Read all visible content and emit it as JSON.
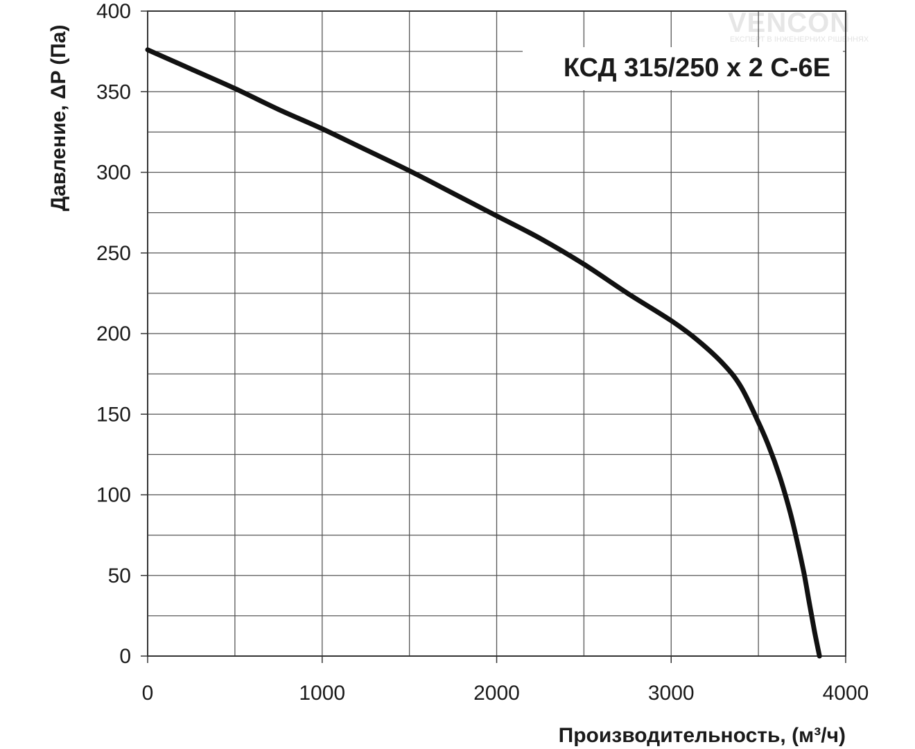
{
  "chart_data": {
    "type": "line",
    "title": "КСД 315/250 x 2 С-6Е",
    "xlabel": "Производительность, (м³/ч)",
    "ylabel": "Давление, ΔP (Па)",
    "xlim": [
      0,
      4000
    ],
    "ylim": [
      0,
      400
    ],
    "x_ticks": [
      "0",
      "1000",
      "2000",
      "3000",
      "4000"
    ],
    "y_ticks": [
      "0",
      "50",
      "100",
      "150",
      "200",
      "250",
      "300",
      "350",
      "400"
    ],
    "grid": true,
    "series": [
      {
        "x": [
          0,
          250,
          500,
          750,
          1000,
          1250,
          1500,
          1750,
          2000,
          2250,
          2500,
          2750,
          3000,
          3150,
          3300,
          3400,
          3500,
          3560,
          3620,
          3680,
          3720,
          3760,
          3790,
          3820,
          3850
        ],
        "y": [
          376,
          364,
          352,
          339,
          327,
          314,
          301,
          287,
          273,
          259,
          243,
          225,
          208,
          196,
          181,
          167,
          145,
          130,
          112,
          90,
          72,
          52,
          34,
          16,
          0
        ]
      }
    ]
  },
  "watermark": {
    "brand": "VENCON",
    "tagline": "ЕКСПЕРТ В ІНЖЕНЕРНИХ РІШЕННЯХ",
    "accent_color": "#b8e6a0"
  },
  "colors": {
    "grid": "#555555",
    "curve": "#111111"
  }
}
